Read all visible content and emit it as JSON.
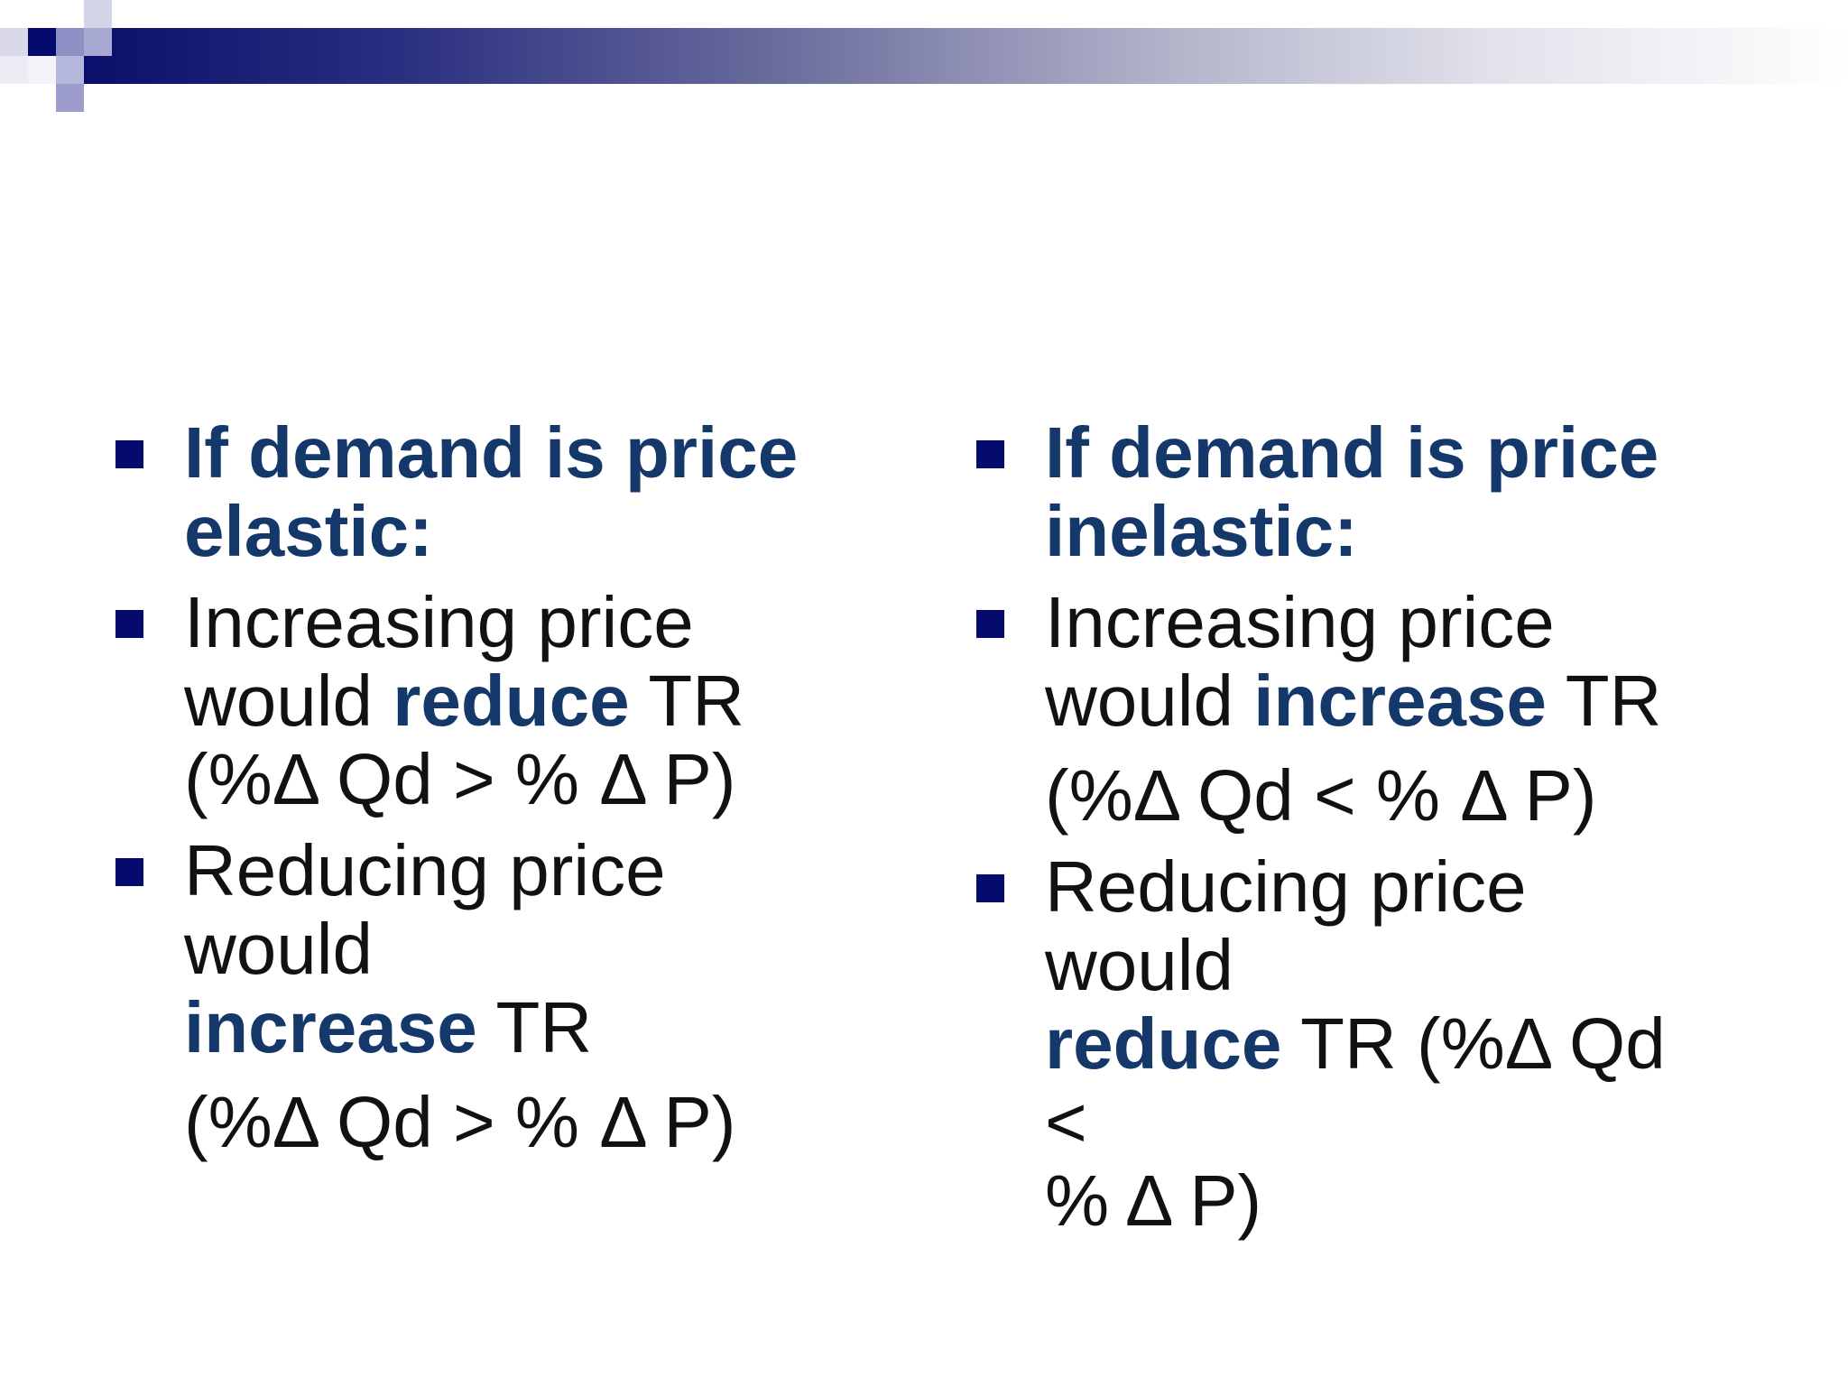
{
  "left": {
    "heading": [
      "If demand is price",
      "elastic:"
    ],
    "item2": {
      "line1": "Increasing price",
      "line2_prefix": "would ",
      "line2_emph": "reduce",
      "line2_suffix": " TR",
      "line3": "(%Δ Qd > % Δ P)"
    },
    "item3": {
      "line1": "Reducing price would",
      "line2_emph": "increase",
      "line2_suffix": " TR",
      "line3": "(%Δ Qd > % Δ P)"
    }
  },
  "right": {
    "heading": [
      "If demand is price",
      "inelastic:"
    ],
    "item2": {
      "line1": "Increasing price",
      "line2_prefix": "would ",
      "line2_emph": "increase",
      "line2_suffix": " TR",
      "line3": "(%Δ Qd < % Δ P)"
    },
    "item3": {
      "line1": "Reducing price would",
      "line2_emph": "reduce",
      "line2_suffix": " TR (%Δ Qd <",
      "line3": "% Δ P)"
    }
  },
  "colors": {
    "heading": "#15386b",
    "bullet": "#050a6e",
    "text": "#111111"
  }
}
